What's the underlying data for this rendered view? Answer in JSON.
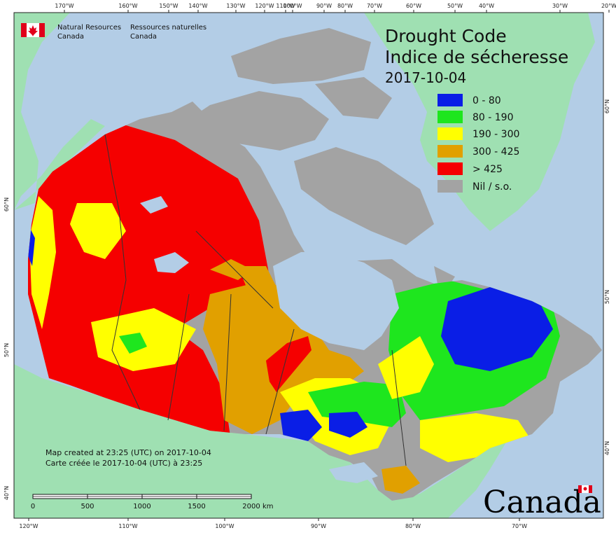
{
  "map": {
    "title_en": "Drought Code",
    "title_fr": "Indice de sécheresse",
    "date": "2017-10-04"
  },
  "organization": {
    "name_en_line1": "Natural Resources",
    "name_en_line2": "Canada",
    "name_fr_line1": "Ressources naturelles",
    "name_fr_line2": "Canada"
  },
  "legend": [
    {
      "label": "0 - 80",
      "color": "#0a1ee6"
    },
    {
      "label": "80 - 190",
      "color": "#1ee61e"
    },
    {
      "label": "190 - 300",
      "color": "#ffff00"
    },
    {
      "label": "300 - 425",
      "color": "#e1a000"
    },
    {
      "label": "> 425",
      "color": "#f50000"
    },
    {
      "label": "Nil / s.o.",
      "color": "#a3a3a3"
    }
  ],
  "credits": {
    "line_en": "Map created at 23:25 (UTC) on 2017-10-04",
    "line_fr": "Carte créée le 2017-10-04 (UTC) à 23:25"
  },
  "scale": {
    "labels": [
      "0",
      "500",
      "1000",
      "1500",
      "2000"
    ],
    "unit": "km"
  },
  "top_ticks": [
    "170°W",
    "160°W",
    "150°W",
    "140°W",
    "130°W",
    "120°W",
    "110°W",
    "100°W",
    "90°W",
    "80°W",
    "70°W",
    "60°W",
    "50°W",
    "40°W",
    "30°W",
    "20°W"
  ],
  "bottom_ticks": [
    "120°W",
    "110°W",
    "100°W",
    "90°W",
    "80°W",
    "70°W"
  ],
  "left_ticks": [
    "60°N",
    "50°N",
    "40°N"
  ],
  "right_ticks": [
    "60°N",
    "50°N",
    "40°N"
  ],
  "wordmark": "Canada",
  "colors": {
    "ocean": "#b3cde6",
    "land_other": "#9fe0b2",
    "no_data": "#a3a3a3",
    "border": "#333333"
  }
}
